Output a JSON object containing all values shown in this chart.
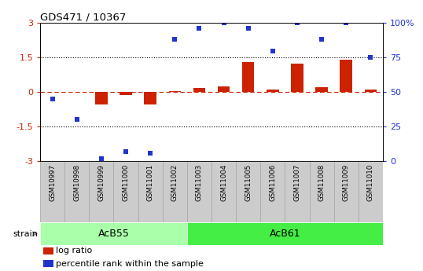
{
  "title": "GDS471 / 10367",
  "samples": [
    "GSM10997",
    "GSM10998",
    "GSM10999",
    "GSM11000",
    "GSM11001",
    "GSM11002",
    "GSM11003",
    "GSM11004",
    "GSM11005",
    "GSM11006",
    "GSM11007",
    "GSM11008",
    "GSM11009",
    "GSM11010"
  ],
  "log_ratio": [
    0.0,
    0.0,
    -0.55,
    -0.12,
    -0.55,
    0.05,
    0.18,
    0.25,
    1.3,
    0.1,
    1.25,
    0.2,
    1.4,
    0.1
  ],
  "percentile_rank": [
    45,
    30,
    2,
    7,
    6,
    88,
    96,
    100,
    96,
    80,
    100,
    88,
    100,
    75
  ],
  "ylim_left": [
    -3,
    3
  ],
  "ylim_right": [
    0,
    100
  ],
  "yticks_left": [
    -3,
    -1.5,
    0,
    1.5,
    3
  ],
  "yticks_right": [
    0,
    25,
    50,
    75,
    100
  ],
  "groups": [
    {
      "label": "AcB55",
      "start": 0,
      "end": 6,
      "color": "#aaffaa"
    },
    {
      "label": "AcB61",
      "start": 6,
      "end": 14,
      "color": "#44ee44"
    }
  ],
  "bar_color": "#cc2200",
  "scatter_color": "#2233cc",
  "right_axis_color": "#2233cc",
  "background_color": "#ffffff",
  "gsm_bg": "#cccccc",
  "gsm_border": "#aaaaaa",
  "legend_items": [
    {
      "label": "log ratio",
      "color": "#cc2200"
    },
    {
      "label": "percentile rank within the sample",
      "color": "#2233cc"
    }
  ],
  "strain_label": "strain",
  "strain_arrow_color": "#888888"
}
